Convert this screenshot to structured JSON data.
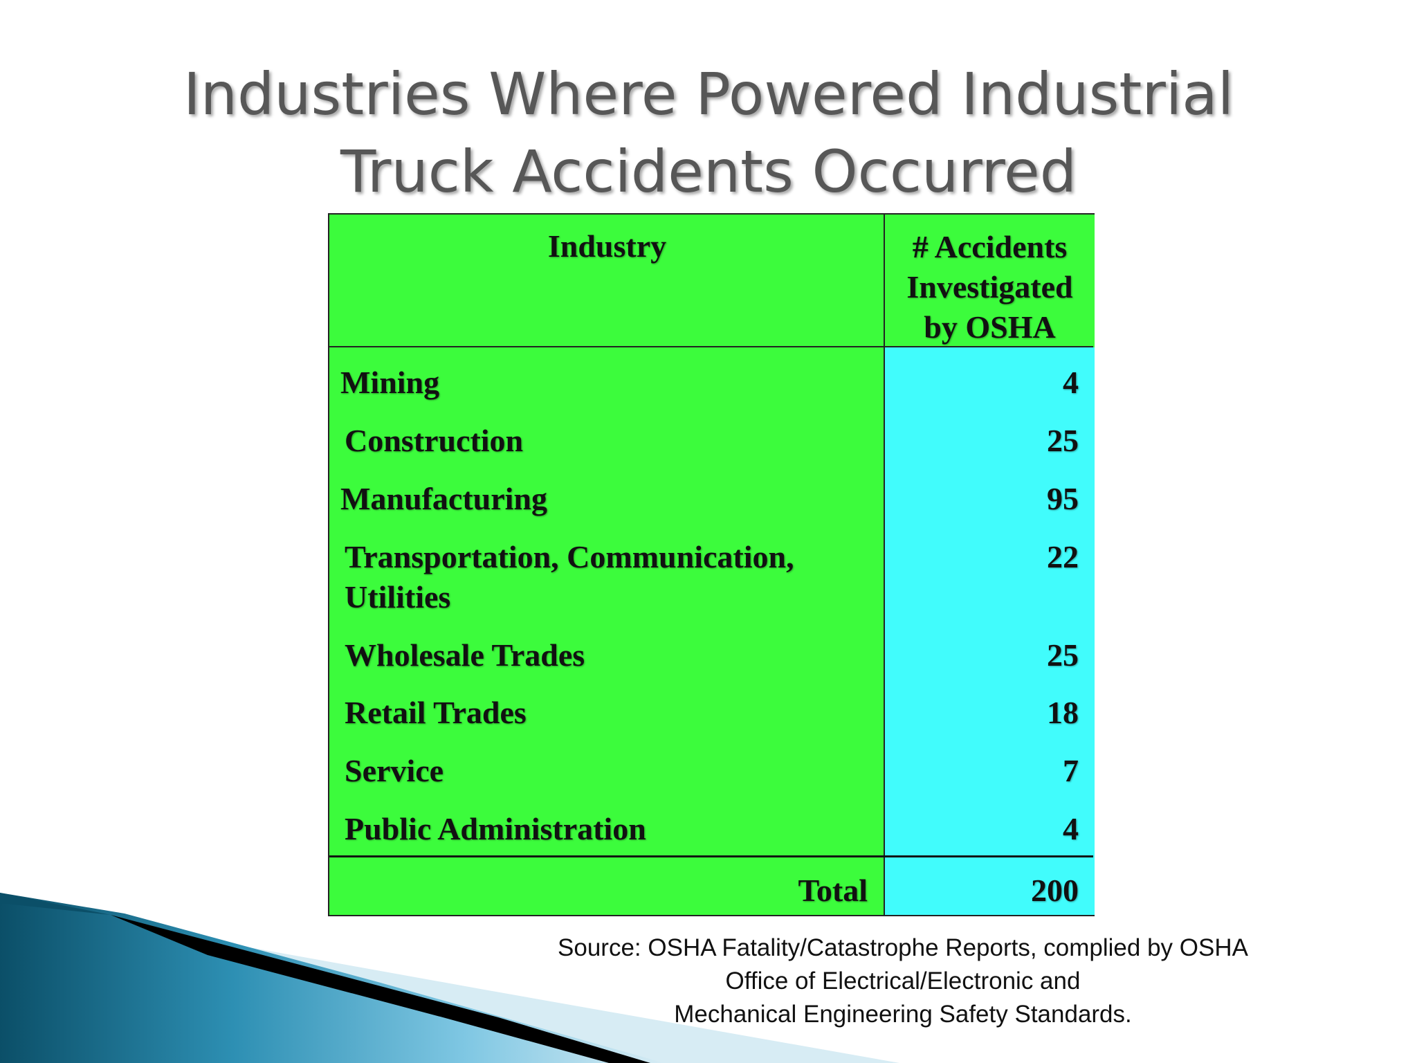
{
  "slide": {
    "title_lines": [
      "Industries Where Powered Industrial",
      "Truck Accidents Occurred"
    ]
  },
  "table": {
    "header": {
      "industry": "Industry",
      "accidents_lines": [
        "# Accidents",
        "Investigated",
        "by OSHA"
      ]
    },
    "rows": [
      {
        "industry_lines": [
          "Mining"
        ],
        "accidents": "4"
      },
      {
        "industry_lines": [
          "Construction"
        ],
        "accidents": "25"
      },
      {
        "industry_lines": [
          "Manufacturing"
        ],
        "accidents": "95"
      },
      {
        "industry_lines": [
          "Transportation, Communication,",
          "Utilities"
        ],
        "accidents": "22"
      },
      {
        "industry_lines": [
          "Wholesale Trades"
        ],
        "accidents": "25"
      },
      {
        "industry_lines": [
          "Retail Trades"
        ],
        "accidents": "18"
      },
      {
        "industry_lines": [
          "Service"
        ],
        "accidents": "7"
      },
      {
        "industry_lines": [
          "Public Administration"
        ],
        "accidents": "4"
      }
    ],
    "total": {
      "label": "Total",
      "accidents": "200"
    },
    "colors": {
      "industry_column": "#3cfc3c",
      "value_column": "#41fcfc"
    }
  },
  "source": {
    "lines": [
      "Source: OSHA Fatality/Catastrophe Reports, complied by OSHA",
      "Office of Electrical/Electronic and",
      "Mechanical Engineering Safety Standards."
    ]
  },
  "decoration": {
    "colors": {
      "band_dark": "#0b4f68",
      "band_mid": "#2d8fb3",
      "band_light": "#7fc7e3",
      "band_pale": "#d7ecf4",
      "stripe": "#000000"
    }
  }
}
